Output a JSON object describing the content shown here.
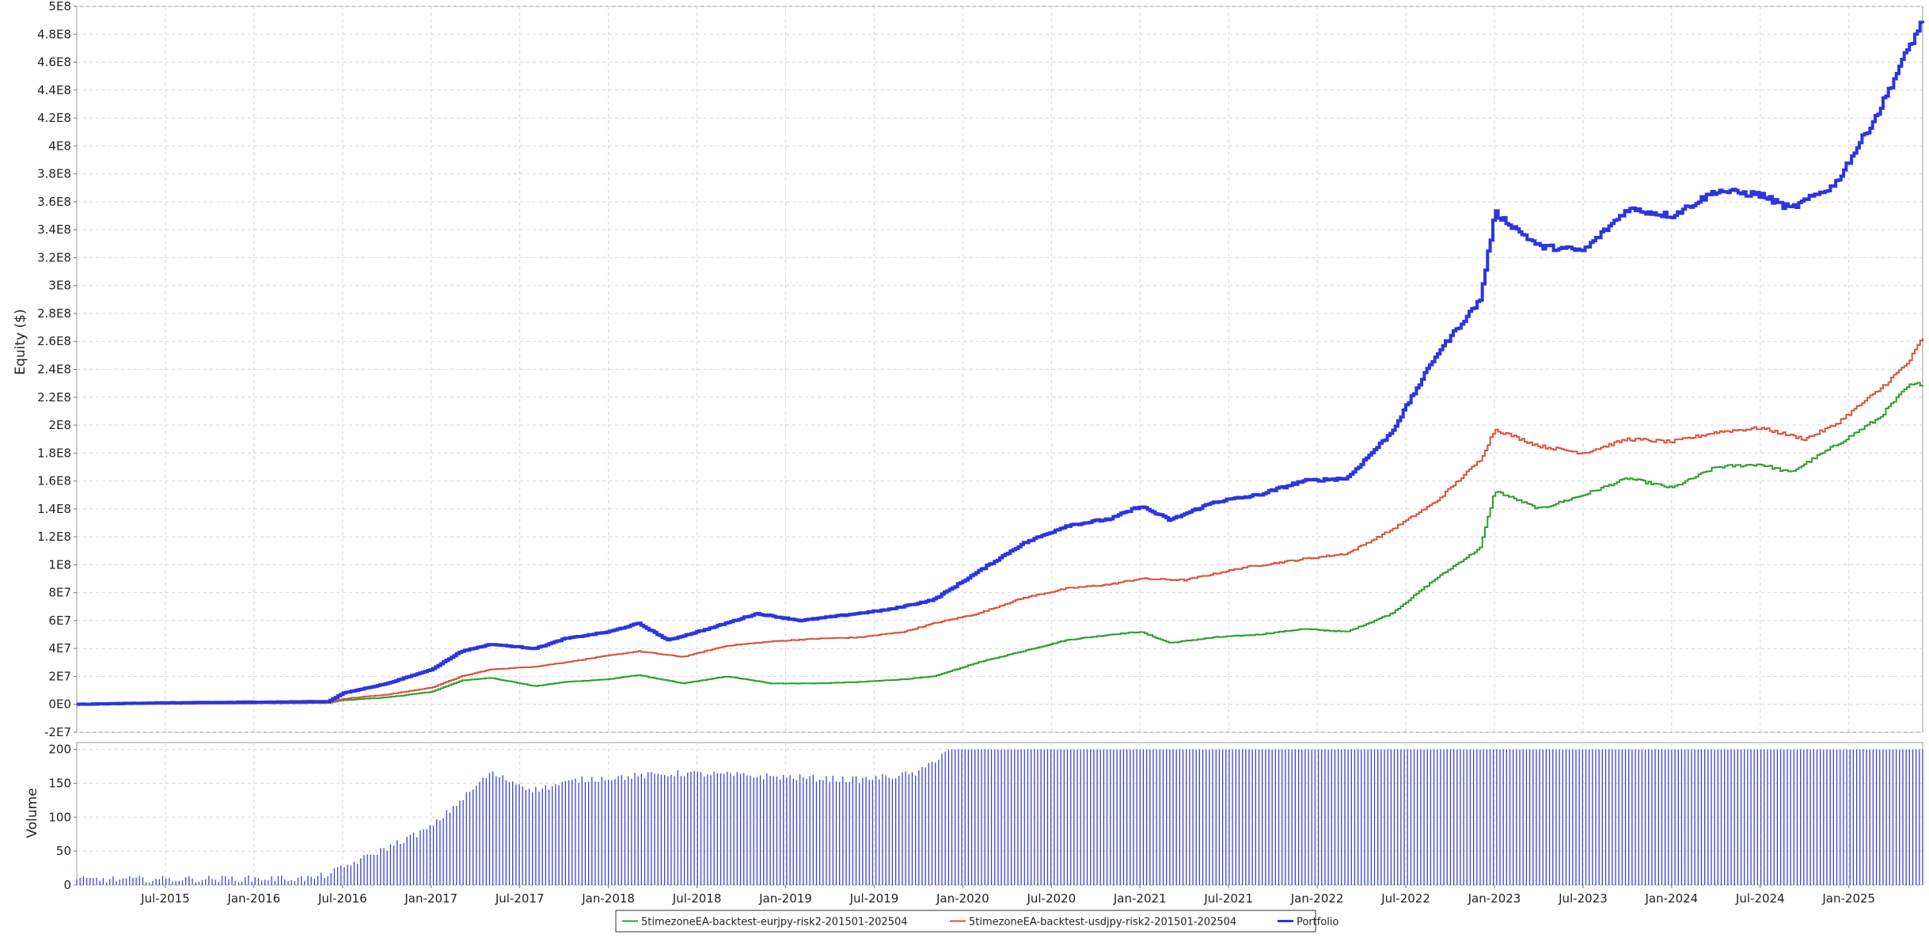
{
  "chart_data": [
    {
      "type": "line",
      "title": "",
      "xlabel": "",
      "ylabel": "Equity ($)",
      "x_ticks": [
        "Jul-2015",
        "Jan-2016",
        "Jul-2016",
        "Jan-2017",
        "Jul-2017",
        "Jan-2018",
        "Jul-2018",
        "Jan-2019",
        "Jul-2019",
        "Jan-2020",
        "Jul-2020",
        "Jan-2021",
        "Jul-2021",
        "Jan-2022",
        "Jul-2022",
        "Jan-2023",
        "Jul-2023",
        "Jan-2024",
        "Jul-2024",
        "Jan-2025"
      ],
      "x_range": [
        "2015-01",
        "2025-06"
      ],
      "y_ticks": [
        "-2E7",
        "0E0",
        "2E7",
        "4E7",
        "6E7",
        "8E7",
        "1E8",
        "1.2E8",
        "1.4E8",
        "1.6E8",
        "1.8E8",
        "2E8",
        "2.2E8",
        "2.4E8",
        "2.6E8",
        "2.8E8",
        "3E8",
        "3.2E8",
        "3.4E8",
        "3.6E8",
        "3.8E8",
        "4E8",
        "4.2E8",
        "4.4E8",
        "4.6E8",
        "4.8E8",
        "5E8"
      ],
      "ylim": [
        -20000000,
        500000000
      ],
      "grid": true,
      "legend_position": "bottom",
      "series": [
        {
          "name": "5timezoneEA-backtest-eurjpy-risk2-201501-202504",
          "color": "#2ca02c",
          "points": [
            [
              "2015-01",
              0
            ],
            [
              "2016-06",
              1000000
            ],
            [
              "2016-07",
              3000000
            ],
            [
              "2016-10",
              5000000
            ],
            [
              "2017-01",
              9000000
            ],
            [
              "2017-03",
              17000000
            ],
            [
              "2017-05",
              19000000
            ],
            [
              "2017-08",
              13000000
            ],
            [
              "2017-10",
              16000000
            ],
            [
              "2018-01",
              18000000
            ],
            [
              "2018-03",
              21000000
            ],
            [
              "2018-06",
              15000000
            ],
            [
              "2018-09",
              20000000
            ],
            [
              "2018-12",
              15000000
            ],
            [
              "2019-03",
              15000000
            ],
            [
              "2019-06",
              16000000
            ],
            [
              "2019-09",
              18000000
            ],
            [
              "2019-11",
              20000000
            ],
            [
              "2020-02",
              30000000
            ],
            [
              "2020-05",
              38000000
            ],
            [
              "2020-08",
              46000000
            ],
            [
              "2020-11",
              50000000
            ],
            [
              "2021-01",
              52000000
            ],
            [
              "2021-03",
              44000000
            ],
            [
              "2021-06",
              48000000
            ],
            [
              "2021-09",
              50000000
            ],
            [
              "2021-12",
              54000000
            ],
            [
              "2022-03",
              52000000
            ],
            [
              "2022-06",
              65000000
            ],
            [
              "2022-09",
              90000000
            ],
            [
              "2022-12",
              112000000
            ],
            [
              "2023-01",
              153000000
            ],
            [
              "2023-04",
              140000000
            ],
            [
              "2023-07",
              150000000
            ],
            [
              "2023-10",
              162000000
            ],
            [
              "2024-01",
              155000000
            ],
            [
              "2024-04",
              170000000
            ],
            [
              "2024-07",
              172000000
            ],
            [
              "2024-09",
              166000000
            ],
            [
              "2024-12",
              185000000
            ],
            [
              "2025-03",
              205000000
            ],
            [
              "2025-05",
              228000000
            ],
            [
              "2025-06",
              230000000
            ]
          ]
        },
        {
          "name": "5timezoneEA-backtest-usdjpy-risk2-201501-202504",
          "color": "#d9533b",
          "points": [
            [
              "2015-01",
              0
            ],
            [
              "2016-06",
              1000000
            ],
            [
              "2016-07",
              4000000
            ],
            [
              "2016-10",
              7000000
            ],
            [
              "2017-01",
              12000000
            ],
            [
              "2017-03",
              20000000
            ],
            [
              "2017-05",
              25000000
            ],
            [
              "2017-08",
              27000000
            ],
            [
              "2017-10",
              30000000
            ],
            [
              "2018-01",
              35000000
            ],
            [
              "2018-03",
              38000000
            ],
            [
              "2018-06",
              34000000
            ],
            [
              "2018-09",
              42000000
            ],
            [
              "2018-12",
              45000000
            ],
            [
              "2019-03",
              47000000
            ],
            [
              "2019-06",
              48000000
            ],
            [
              "2019-09",
              52000000
            ],
            [
              "2019-11",
              58000000
            ],
            [
              "2020-02",
              65000000
            ],
            [
              "2020-05",
              76000000
            ],
            [
              "2020-08",
              83000000
            ],
            [
              "2020-11",
              86000000
            ],
            [
              "2021-01",
              90000000
            ],
            [
              "2021-04",
              89000000
            ],
            [
              "2021-08",
              98000000
            ],
            [
              "2021-12",
              104000000
            ],
            [
              "2022-03",
              108000000
            ],
            [
              "2022-06",
              125000000
            ],
            [
              "2022-09",
              145000000
            ],
            [
              "2022-12",
              175000000
            ],
            [
              "2023-01",
              197000000
            ],
            [
              "2023-04",
              185000000
            ],
            [
              "2023-07",
              180000000
            ],
            [
              "2023-10",
              190000000
            ],
            [
              "2024-01",
              188000000
            ],
            [
              "2024-04",
              195000000
            ],
            [
              "2024-07",
              198000000
            ],
            [
              "2024-10",
              190000000
            ],
            [
              "2024-12",
              200000000
            ],
            [
              "2025-03",
              225000000
            ],
            [
              "2025-05",
              245000000
            ],
            [
              "2025-06",
              263000000
            ]
          ]
        },
        {
          "name": "Portfolio",
          "color": "#2b35e0",
          "points": [
            [
              "2015-01",
              0
            ],
            [
              "2015-06",
              1000000
            ],
            [
              "2016-06",
              2000000
            ],
            [
              "2016-07",
              8000000
            ],
            [
              "2016-10",
              15000000
            ],
            [
              "2017-01",
              25000000
            ],
            [
              "2017-03",
              38000000
            ],
            [
              "2017-05",
              43000000
            ],
            [
              "2017-08",
              40000000
            ],
            [
              "2017-10",
              47000000
            ],
            [
              "2018-01",
              52000000
            ],
            [
              "2018-03",
              58000000
            ],
            [
              "2018-05",
              46000000
            ],
            [
              "2018-08",
              55000000
            ],
            [
              "2018-11",
              65000000
            ],
            [
              "2019-02",
              60000000
            ],
            [
              "2019-05",
              64000000
            ],
            [
              "2019-08",
              68000000
            ],
            [
              "2019-11",
              75000000
            ],
            [
              "2020-02",
              95000000
            ],
            [
              "2020-05",
              115000000
            ],
            [
              "2020-08",
              128000000
            ],
            [
              "2020-11",
              133000000
            ],
            [
              "2021-01",
              142000000
            ],
            [
              "2021-03",
              132000000
            ],
            [
              "2021-06",
              145000000
            ],
            [
              "2021-09",
              150000000
            ],
            [
              "2021-12",
              160000000
            ],
            [
              "2022-03",
              162000000
            ],
            [
              "2022-06",
              195000000
            ],
            [
              "2022-09",
              250000000
            ],
            [
              "2022-12",
              290000000
            ],
            [
              "2023-01",
              352000000
            ],
            [
              "2023-04",
              328000000
            ],
            [
              "2023-07",
              325000000
            ],
            [
              "2023-10",
              355000000
            ],
            [
              "2024-01",
              350000000
            ],
            [
              "2024-04",
              368000000
            ],
            [
              "2024-07",
              365000000
            ],
            [
              "2024-09",
              355000000
            ],
            [
              "2024-12",
              372000000
            ],
            [
              "2025-03",
              425000000
            ],
            [
              "2025-05",
              470000000
            ],
            [
              "2025-06",
              490000000
            ]
          ]
        }
      ]
    },
    {
      "type": "bar",
      "title": "",
      "xlabel": "",
      "ylabel": "Volume",
      "y_ticks": [
        "0",
        "50",
        "100",
        "150",
        "200"
      ],
      "ylim": [
        0,
        210
      ],
      "grid": true,
      "color": "#3b40d8",
      "series_profile": [
        [
          "2015-01",
          8
        ],
        [
          "2016-05",
          10
        ],
        [
          "2016-06",
          16
        ],
        [
          "2016-08",
          35
        ],
        [
          "2017-01",
          85
        ],
        [
          "2017-05",
          165
        ],
        [
          "2017-08",
          140
        ],
        [
          "2017-11",
          155
        ],
        [
          "2018-06",
          165
        ],
        [
          "2019-06",
          155
        ],
        [
          "2019-10",
          165
        ],
        [
          "2019-12",
          200
        ],
        [
          "2025-06",
          200
        ]
      ]
    }
  ]
}
